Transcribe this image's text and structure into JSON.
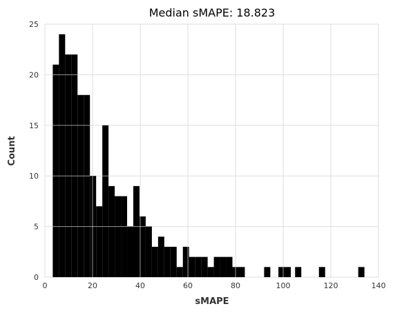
{
  "chart_data": {
    "type": "bar",
    "title": "Median sMAPE: 18.823",
    "xlabel": "sMAPE",
    "ylabel": "Count",
    "xlim": [
      0,
      140
    ],
    "ylim": [
      0,
      25
    ],
    "xticks": [
      0,
      20,
      40,
      60,
      80,
      100,
      120,
      140
    ],
    "yticks": [
      0,
      5,
      10,
      15,
      20,
      25
    ],
    "grid": true,
    "bin_width": 2.6,
    "bins": [
      {
        "x0": 3.3,
        "count": 21
      },
      {
        "x0": 5.9,
        "count": 24
      },
      {
        "x0": 8.5,
        "count": 22
      },
      {
        "x0": 11.1,
        "count": 22
      },
      {
        "x0": 13.7,
        "count": 18
      },
      {
        "x0": 16.3,
        "count": 18
      },
      {
        "x0": 18.9,
        "count": 10
      },
      {
        "x0": 21.5,
        "count": 7
      },
      {
        "x0": 24.1,
        "count": 15
      },
      {
        "x0": 26.7,
        "count": 9
      },
      {
        "x0": 29.3,
        "count": 8
      },
      {
        "x0": 31.9,
        "count": 8
      },
      {
        "x0": 34.5,
        "count": 5
      },
      {
        "x0": 37.1,
        "count": 9
      },
      {
        "x0": 39.7,
        "count": 6
      },
      {
        "x0": 42.3,
        "count": 5
      },
      {
        "x0": 44.9,
        "count": 3
      },
      {
        "x0": 47.5,
        "count": 4
      },
      {
        "x0": 50.1,
        "count": 3
      },
      {
        "x0": 52.7,
        "count": 3
      },
      {
        "x0": 55.3,
        "count": 1
      },
      {
        "x0": 57.9,
        "count": 3
      },
      {
        "x0": 60.5,
        "count": 2
      },
      {
        "x0": 63.1,
        "count": 2
      },
      {
        "x0": 65.7,
        "count": 2
      },
      {
        "x0": 68.3,
        "count": 1
      },
      {
        "x0": 70.9,
        "count": 2
      },
      {
        "x0": 73.5,
        "count": 2
      },
      {
        "x0": 76.1,
        "count": 2
      },
      {
        "x0": 78.7,
        "count": 1
      },
      {
        "x0": 81.3,
        "count": 1
      },
      {
        "x0": 92.0,
        "count": 1
      },
      {
        "x0": 98.0,
        "count": 1
      },
      {
        "x0": 100.6,
        "count": 1
      },
      {
        "x0": 105.0,
        "count": 1
      },
      {
        "x0": 115.0,
        "count": 1
      },
      {
        "x0": 131.5,
        "count": 1
      }
    ],
    "bar_color": "#000000",
    "grid_color": "#dddddd"
  }
}
